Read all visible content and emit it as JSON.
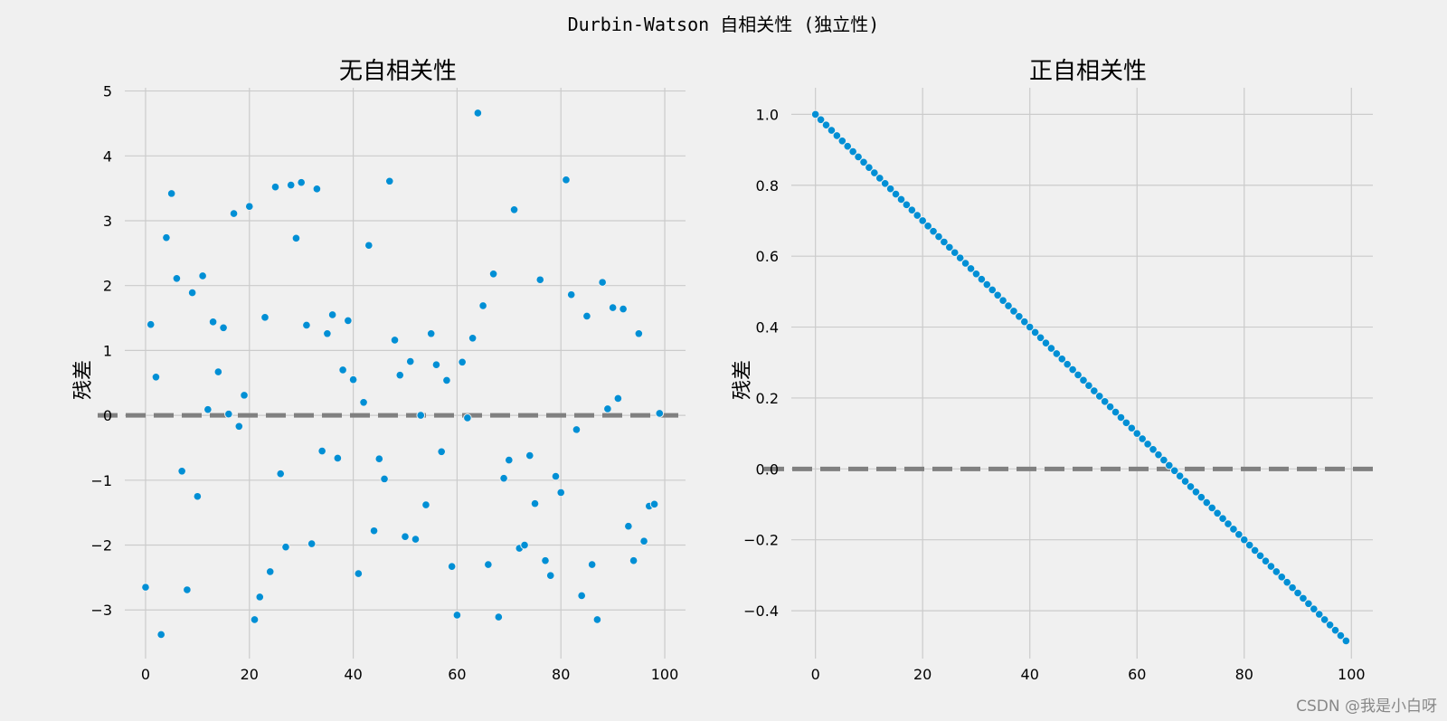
{
  "figure": {
    "suptitle": "Durbin-Watson 自相关性 (独立性)",
    "watermark": "CSDN @我是小白呀",
    "background": "#f0f0f0",
    "point_color": "#008fd5",
    "grid_color": "#cbcbcb",
    "reference_line_color": "#808080"
  },
  "chart_data": [
    {
      "type": "scatter",
      "title": "无自相关性",
      "xlabel": "",
      "ylabel": "残差",
      "xlim": [
        -4,
        104
      ],
      "ylim": [
        -3.75,
        5.05
      ],
      "xticks": [
        0,
        20,
        40,
        60,
        80,
        100
      ],
      "xtick_labels": [
        "0",
        "20",
        "40",
        "60",
        "80",
        "100"
      ],
      "yticks": [
        -3,
        -2,
        -1,
        0,
        1,
        2,
        3,
        4,
        5
      ],
      "ytick_labels": [
        "−3",
        "−2",
        "−1",
        "0",
        "1",
        "2",
        "3",
        "4",
        "5"
      ],
      "grid": true,
      "reference_line": {
        "y": 0,
        "style": "dashed"
      },
      "x": [
        0,
        1,
        2,
        3,
        4,
        5,
        6,
        7,
        8,
        9,
        10,
        11,
        12,
        13,
        14,
        15,
        16,
        17,
        18,
        19,
        20,
        21,
        22,
        23,
        24,
        25,
        26,
        27,
        28,
        29,
        30,
        31,
        32,
        33,
        34,
        35,
        36,
        37,
        38,
        39,
        40,
        41,
        42,
        43,
        44,
        45,
        46,
        47,
        48,
        49,
        50,
        51,
        52,
        53,
        54,
        55,
        56,
        57,
        58,
        59,
        60,
        61,
        62,
        63,
        64,
        65,
        66,
        67,
        68,
        69,
        70,
        71,
        72,
        73,
        74,
        75,
        76,
        77,
        78,
        79,
        80,
        81,
        82,
        83,
        84,
        85,
        86,
        87,
        88,
        89,
        90,
        91,
        92,
        93,
        94,
        95,
        96,
        97,
        98,
        99
      ],
      "y": [
        -2.65,
        1.4,
        0.59,
        -3.38,
        2.74,
        3.42,
        2.11,
        -0.86,
        -2.69,
        1.89,
        -1.25,
        2.15,
        0.09,
        1.44,
        0.67,
        1.35,
        0.02,
        3.11,
        -0.17,
        0.31,
        3.22,
        -3.15,
        -2.8,
        1.51,
        -2.41,
        3.52,
        -0.9,
        -2.03,
        3.55,
        2.73,
        3.59,
        1.39,
        -1.98,
        3.49,
        -0.55,
        1.26,
        1.55,
        -0.66,
        0.7,
        1.46,
        0.55,
        -2.44,
        0.2,
        2.62,
        -1.78,
        -0.67,
        -0.98,
        3.61,
        1.16,
        0.62,
        -1.87,
        0.83,
        -1.91,
        0.0,
        -1.38,
        1.26,
        0.78,
        -0.56,
        0.54,
        -2.33,
        -3.08,
        0.82,
        -0.04,
        1.19,
        4.66,
        1.69,
        -2.3,
        2.18,
        -3.11,
        -0.97,
        -0.69,
        3.17,
        -2.05,
        -2.0,
        -0.62,
        -1.36,
        2.09,
        -2.24,
        -2.47,
        -0.94,
        -1.19,
        3.63,
        1.86,
        -0.22,
        -2.78,
        1.53,
        -2.3,
        -3.15,
        2.05,
        0.1,
        1.66,
        0.26,
        1.64,
        -1.71,
        -2.24,
        1.26,
        -1.94,
        -1.4,
        -1.37,
        0.03
      ]
    },
    {
      "type": "scatter",
      "title": "正自相关性",
      "xlabel": "",
      "ylabel": "残差",
      "xlim": [
        -4.5,
        104
      ],
      "ylim": [
        -0.535,
        1.075
      ],
      "xticks": [
        0,
        20,
        40,
        60,
        80,
        100
      ],
      "xtick_labels": [
        "0",
        "20",
        "40",
        "60",
        "80",
        "100"
      ],
      "yticks": [
        -0.4,
        -0.2,
        0.0,
        0.2,
        0.4,
        0.6,
        0.8,
        1.0
      ],
      "ytick_labels": [
        "−0.4",
        "−0.2",
        "0.0",
        "0.2",
        "0.4",
        "0.6",
        "0.8",
        "1.0"
      ],
      "grid": true,
      "reference_line": {
        "y": 0,
        "style": "dashed"
      },
      "x_range": [
        0,
        99
      ],
      "y_start": 1.0,
      "y_step": -0.015
    }
  ]
}
